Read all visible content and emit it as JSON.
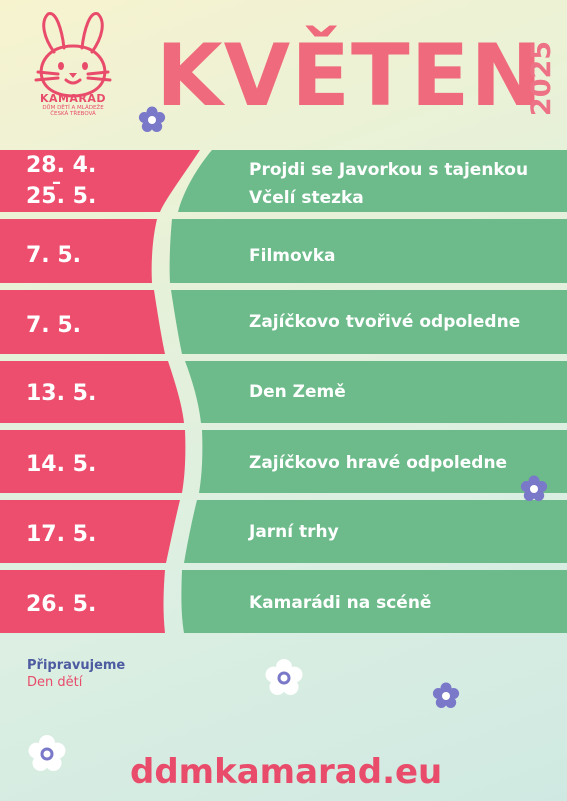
{
  "header": {
    "title": "KVĚTEN",
    "year": "2025",
    "logo": {
      "name": "KAMARÁD",
      "subtitle_line1": "DŮM DĚTÍ A MLÁDEŽE",
      "subtitle_line2": "ČESKÁ TŘEBOVÁ",
      "icon": "rabbit-logo-icon"
    }
  },
  "events": [
    {
      "date_line1": "28. 4.",
      "date_line2": "25. 5.",
      "separator": "–",
      "title_line1": "Projdi se Javorkou s tajenkou",
      "title_line2": "Včelí stezka"
    },
    {
      "date": "7. 5.",
      "title": "Filmovka"
    },
    {
      "date": "7. 5.",
      "title": "Zajíčkovo tvořivé odpoledne"
    },
    {
      "date": "13. 5.",
      "title": "Den Země"
    },
    {
      "date": "14. 5.",
      "title": "Zajíčkovo hravé odpoledne"
    },
    {
      "date": "17. 5.",
      "title": "Jarní trhy"
    },
    {
      "date": "26. 5.",
      "title": "Kamarádi na scéně"
    }
  ],
  "upcoming": {
    "label": "Připravujeme",
    "event": "Den dětí"
  },
  "footer": {
    "website": "ddmkamarad.eu"
  },
  "colors": {
    "pink": "#ed4e6e",
    "green": "#6dbb8b",
    "title_pink": "#ef6a7c",
    "navy": "#4d5ba1",
    "flower_purple": "#7a78c9"
  }
}
